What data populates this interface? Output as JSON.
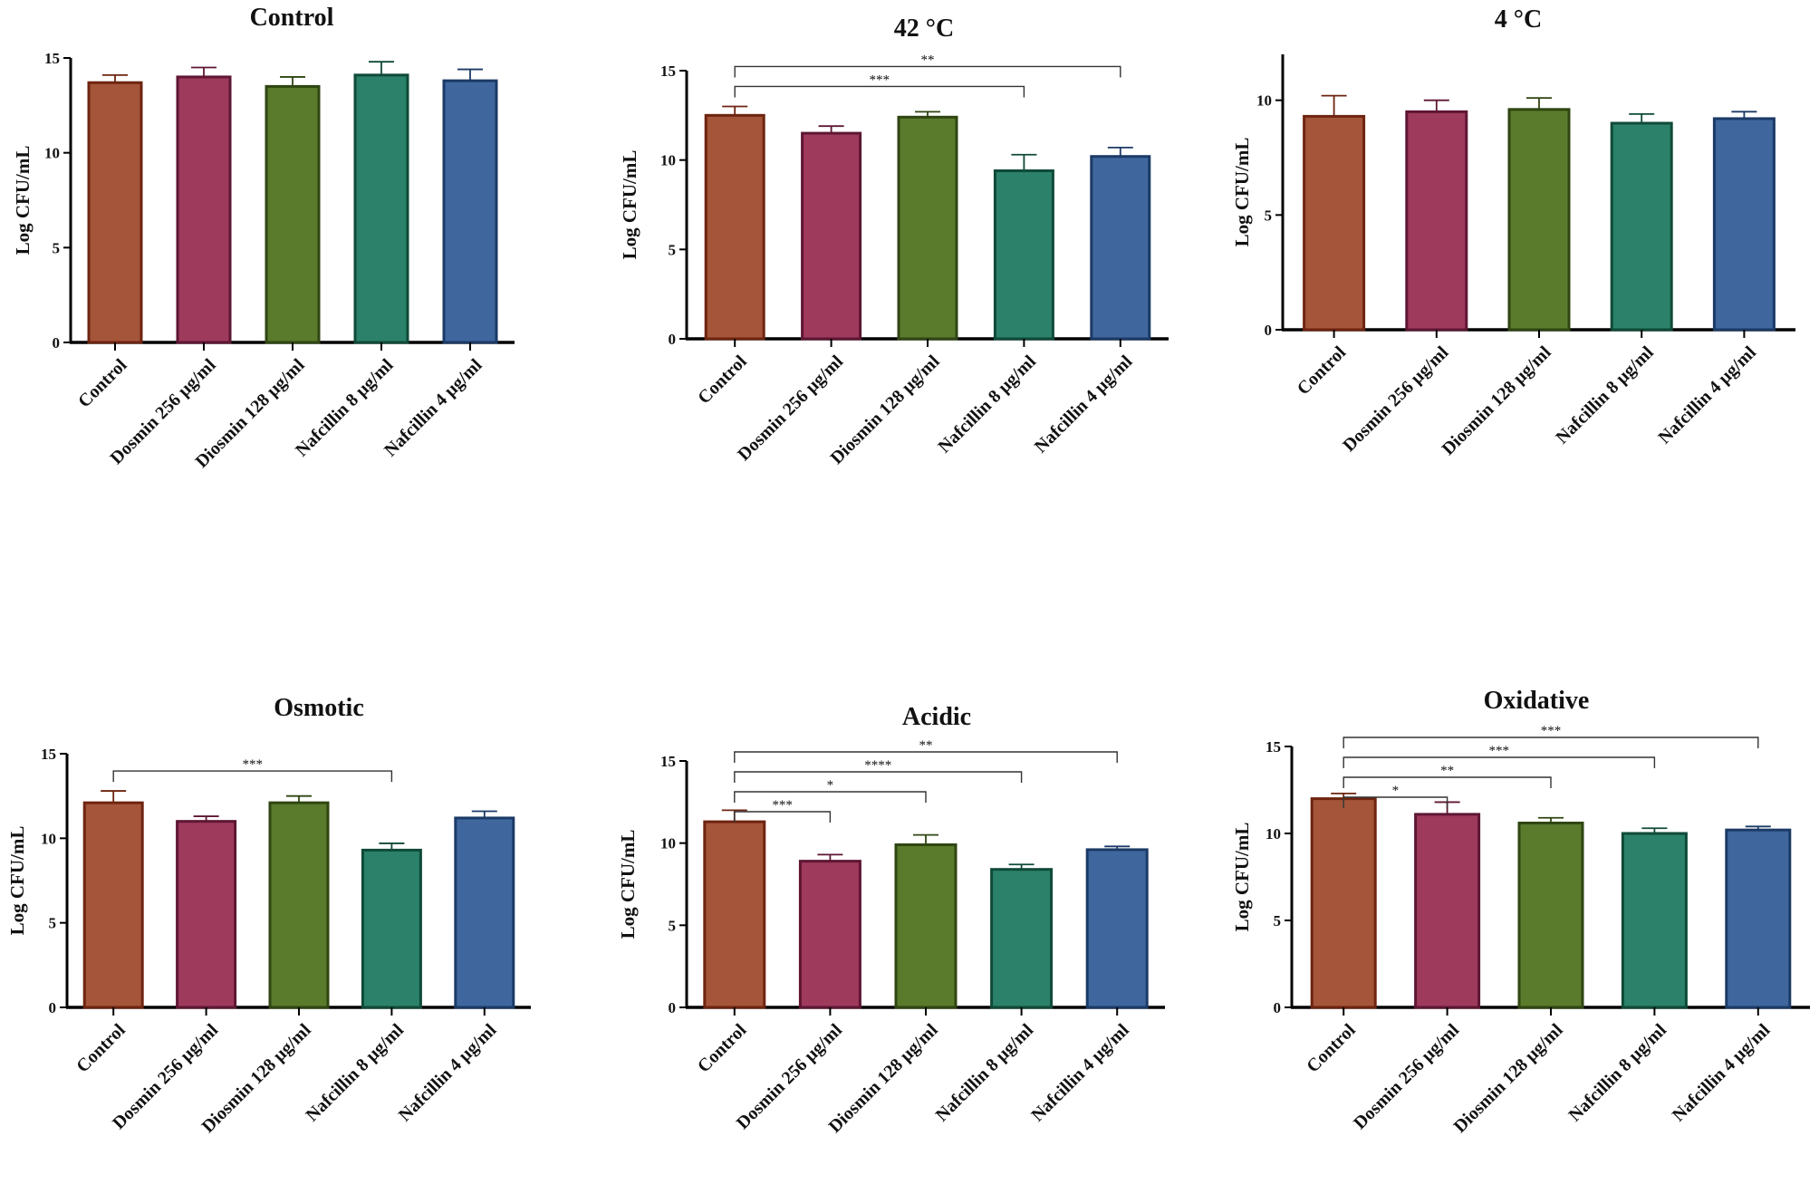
{
  "colors": {
    "control": {
      "fill": "#A4553A",
      "stroke": "#6E2410"
    },
    "dosmin256": {
      "fill": "#9E3A5C",
      "stroke": "#5E1633"
    },
    "diosmin128": {
      "fill": "#5A7A2C",
      "stroke": "#2F4612"
    },
    "nafcillin8": {
      "fill": "#2B8169",
      "stroke": "#0F4A38"
    },
    "nafcillin4": {
      "fill": "#3F679E",
      "stroke": "#1B3A66"
    }
  },
  "chart_data": [
    {
      "type": "bar",
      "title": "Control",
      "ylabel": "Log CFU/mL",
      "ylim": [
        0,
        15
      ],
      "yticks": [
        0,
        5,
        10,
        15
      ],
      "categories": [
        "Control",
        "Dosmin 256  µg/ml",
        "Diosmin 128  µg/ml",
        "Nafcillin 8  µg/ml",
        "Nafcillin 4  µg/ml"
      ],
      "values": [
        13.7,
        14.0,
        13.5,
        14.1,
        13.8
      ],
      "errors": [
        0.4,
        0.5,
        0.5,
        0.7,
        0.6
      ],
      "significance": []
    },
    {
      "type": "bar",
      "title": "42 °C",
      "ylabel": "Log CFU/mL",
      "ylim": [
        0,
        15
      ],
      "yticks": [
        0,
        5,
        10,
        15
      ],
      "categories": [
        "Control",
        "Dosmin 256 µg/ml",
        "Diosmin 128 µg/ml",
        "Nafcillin 8 µg/ml",
        "Nafcillin 4 µg/ml"
      ],
      "values": [
        12.5,
        11.5,
        12.4,
        9.4,
        10.2
      ],
      "errors": [
        0.5,
        0.4,
        0.3,
        0.9,
        0.5
      ],
      "significance": [
        {
          "from": 0,
          "to": 4,
          "label": "**"
        },
        {
          "from": 0,
          "to": 3,
          "label": "***"
        }
      ]
    },
    {
      "type": "bar",
      "title": "4 °C",
      "ylabel": "Log CFU/mL",
      "ylim": [
        0,
        12
      ],
      "yticks": [
        0,
        5,
        10
      ],
      "categories": [
        "Control",
        "Dosmin 256 µg/ml",
        "Diosmin 128 µg/ml",
        "Nafcillin 8 µg/ml",
        "Nafcillin 4 µg/ml"
      ],
      "values": [
        9.3,
        9.5,
        9.6,
        9.0,
        9.2
      ],
      "errors": [
        0.9,
        0.5,
        0.5,
        0.4,
        0.3
      ],
      "significance": []
    },
    {
      "type": "bar",
      "title": "Osmotic",
      "ylabel": "Log CFU/mL",
      "ylim": [
        0,
        15
      ],
      "yticks": [
        0,
        5,
        10,
        15
      ],
      "categories": [
        "Control",
        "Dosmin 256 µg/ml",
        "Diosmin 128 µg/ml",
        "Nafcillin 8 µg/ml",
        "Nafcillin 4 µg/ml"
      ],
      "values": [
        12.1,
        11.0,
        12.1,
        9.3,
        11.2
      ],
      "errors": [
        0.7,
        0.3,
        0.4,
        0.4,
        0.4
      ],
      "significance": [
        {
          "from": 0,
          "to": 3,
          "label": "***"
        }
      ]
    },
    {
      "type": "bar",
      "title": "Acidic",
      "ylabel": "Log CFU/mL",
      "ylim": [
        0,
        15
      ],
      "yticks": [
        0,
        5,
        10,
        15
      ],
      "categories": [
        "Control",
        "Dosmin 256 µg/ml",
        "Diosmin 128 µg/ml",
        "Nafcillin 8 µg/ml",
        "Nafcillin 4 µg/ml"
      ],
      "values": [
        11.3,
        8.9,
        9.9,
        8.4,
        9.6
      ],
      "errors": [
        0.7,
        0.4,
        0.6,
        0.3,
        0.2
      ],
      "significance": [
        {
          "from": 0,
          "to": 4,
          "label": "**"
        },
        {
          "from": 0,
          "to": 3,
          "label": "****"
        },
        {
          "from": 0,
          "to": 2,
          "label": "*"
        },
        {
          "from": 0,
          "to": 1,
          "label": "***"
        }
      ]
    },
    {
      "type": "bar",
      "title": "Oxidative",
      "ylabel": "Log CFU/mL",
      "ylim": [
        0,
        15
      ],
      "yticks": [
        0,
        5,
        10,
        15
      ],
      "categories": [
        "Control",
        "Dosmin 256 µg/ml",
        "Diosmin 128 µg/ml",
        "Nafcillin 8 µg/ml",
        "Nafcillin 4 µg/ml"
      ],
      "values": [
        12.0,
        11.1,
        10.6,
        10.0,
        10.2
      ],
      "errors": [
        0.3,
        0.7,
        0.3,
        0.3,
        0.2
      ],
      "significance": [
        {
          "from": 0,
          "to": 4,
          "label": "***"
        },
        {
          "from": 0,
          "to": 3,
          "label": "***"
        },
        {
          "from": 0,
          "to": 2,
          "label": "**"
        },
        {
          "from": 0,
          "to": 1,
          "label": "*"
        }
      ]
    }
  ]
}
